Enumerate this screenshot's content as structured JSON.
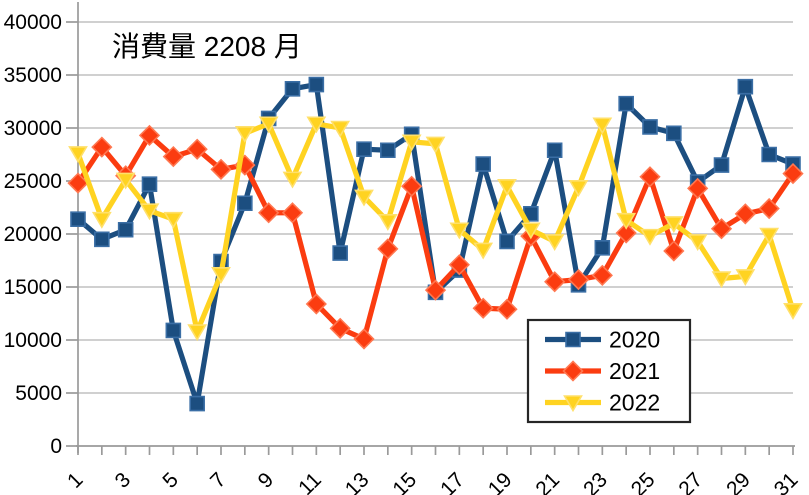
{
  "chart_data": {
    "type": "line",
    "title": "消費量 2208 月",
    "x_days": [
      1,
      2,
      3,
      4,
      5,
      6,
      7,
      8,
      9,
      10,
      11,
      12,
      13,
      14,
      15,
      16,
      17,
      18,
      19,
      20,
      21,
      22,
      23,
      24,
      25,
      26,
      27,
      28,
      29,
      30,
      31
    ],
    "x_tick_labels": [
      "1",
      "3",
      "5",
      "7",
      "9",
      "11",
      "13",
      "15",
      "17",
      "19",
      "21",
      "23",
      "25",
      "27",
      "29",
      "31"
    ],
    "xlabel": "",
    "ylabel": "",
    "ylim": [
      0,
      40000
    ],
    "y_tick_step": 5000,
    "y_tick_labels": [
      "0",
      "5000",
      "10000",
      "15000",
      "20000",
      "25000",
      "30000",
      "35000",
      "40000"
    ],
    "grid": "horizontal-major",
    "legend_position": "inside-bottom-right",
    "series": [
      {
        "name": "2020",
        "marker": "square",
        "color": "#1C4E80",
        "marker_edge": "#3A6EA5",
        "values": [
          21400,
          19500,
          20400,
          24700,
          10900,
          4000,
          17400,
          22900,
          30900,
          33700,
          34100,
          18200,
          28000,
          27900,
          29400,
          14500,
          16600,
          26600,
          19300,
          21900,
          27900,
          15200,
          18700,
          32300,
          30100,
          29500,
          24900,
          26500,
          33900,
          27500,
          26600
        ]
      },
      {
        "name": "2021",
        "marker": "diamond",
        "color": "#FB3C10",
        "marker_edge": "#FF7750",
        "values": [
          24800,
          28200,
          25500,
          29300,
          27300,
          28000,
          26100,
          26500,
          22000,
          22000,
          13400,
          11100,
          10100,
          18600,
          24500,
          14700,
          17100,
          13000,
          12900,
          19800,
          15500,
          15700,
          16100,
          20100,
          25400,
          18400,
          24300,
          20500,
          21900,
          22400,
          25700
        ]
      },
      {
        "name": "2022",
        "marker": "triangle-down",
        "color": "#FFD321",
        "marker_edge": "#FFE06B",
        "values": [
          27600,
          21400,
          25100,
          22200,
          21400,
          10800,
          16200,
          29500,
          30400,
          25200,
          30400,
          30000,
          23500,
          21200,
          28700,
          28500,
          20400,
          18500,
          24500,
          20400,
          19300,
          24400,
          30300,
          21300,
          19800,
          21000,
          19300,
          15800,
          16000,
          19900,
          12800
        ]
      }
    ],
    "legend": {
      "entries": [
        "2020",
        "2021",
        "2022"
      ]
    }
  }
}
